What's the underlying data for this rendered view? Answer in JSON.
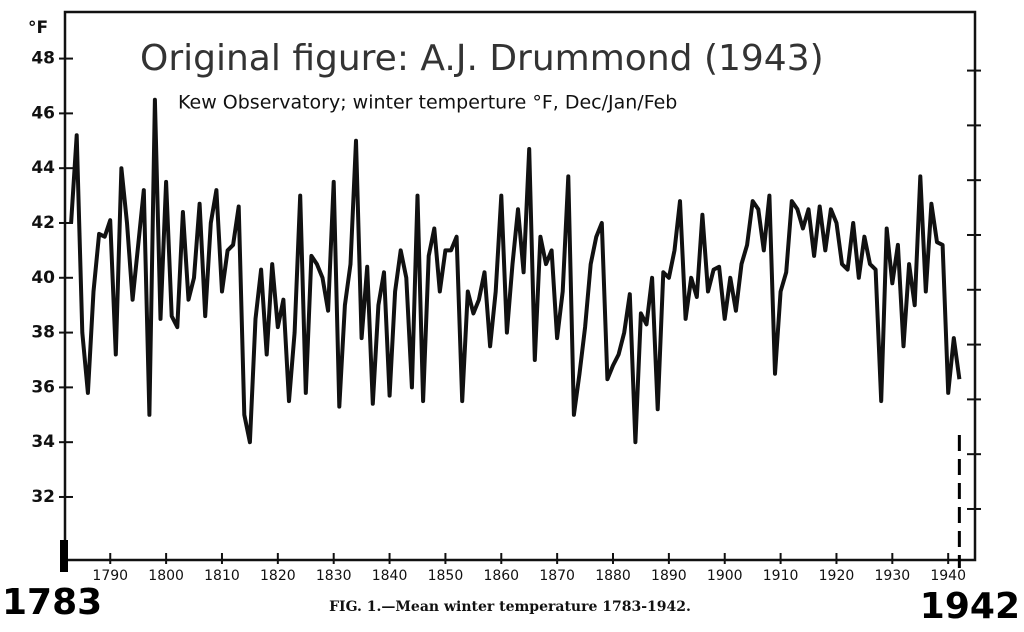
{
  "chart_data": {
    "type": "line",
    "title": "Original figure: A.J. Drummond (1943)",
    "subtitle": "Kew Observatory; winter temperture °F, Dec/Jan/Feb",
    "y_label": "°F",
    "caption": "FIG. 1.—Mean winter temperature 1783-1942.",
    "start_label": "1783",
    "end_label": "1942",
    "x": [
      1783,
      1784,
      1785,
      1786,
      1787,
      1788,
      1789,
      1790,
      1791,
      1792,
      1793,
      1794,
      1795,
      1796,
      1797,
      1798,
      1799,
      1800,
      1801,
      1802,
      1803,
      1804,
      1805,
      1806,
      1807,
      1808,
      1809,
      1810,
      1811,
      1812,
      1813,
      1814,
      1815,
      1816,
      1817,
      1818,
      1819,
      1820,
      1821,
      1822,
      1823,
      1824,
      1825,
      1826,
      1827,
      1828,
      1829,
      1830,
      1831,
      1832,
      1833,
      1834,
      1835,
      1836,
      1837,
      1838,
      1839,
      1840,
      1841,
      1842,
      1843,
      1844,
      1845,
      1846,
      1847,
      1848,
      1849,
      1850,
      1851,
      1852,
      1853,
      1854,
      1855,
      1856,
      1857,
      1858,
      1859,
      1860,
      1861,
      1862,
      1863,
      1864,
      1865,
      1866,
      1867,
      1868,
      1869,
      1870,
      1871,
      1872,
      1873,
      1874,
      1875,
      1876,
      1877,
      1878,
      1879,
      1880,
      1881,
      1882,
      1883,
      1884,
      1885,
      1886,
      1887,
      1888,
      1889,
      1890,
      1891,
      1892,
      1893,
      1894,
      1895,
      1896,
      1897,
      1898,
      1899,
      1900,
      1901,
      1902,
      1903,
      1904,
      1905,
      1906,
      1907,
      1908,
      1909,
      1910,
      1911,
      1912,
      1913,
      1914,
      1915,
      1916,
      1917,
      1918,
      1919,
      1920,
      1921,
      1922,
      1923,
      1924,
      1925,
      1926,
      1927,
      1928,
      1929,
      1930,
      1931,
      1932,
      1933,
      1934,
      1935,
      1936,
      1937,
      1938,
      1939,
      1940,
      1941,
      1942
    ],
    "series": [
      {
        "name": "Mean winter temperature",
        "color": "#111111",
        "values": [
          42.0,
          45.2,
          38.0,
          35.8,
          39.5,
          41.6,
          41.5,
          42.1,
          37.2,
          44.0,
          42.0,
          39.2,
          41.2,
          43.2,
          35.0,
          46.5,
          38.5,
          43.5,
          38.6,
          38.2,
          42.4,
          39.2,
          40.0,
          42.7,
          38.6,
          42.0,
          43.2,
          39.5,
          41.0,
          41.2,
          42.6,
          35.0,
          34.0,
          38.5,
          40.3,
          37.2,
          40.5,
          38.2,
          39.2,
          35.5,
          38.0,
          43.0,
          35.8,
          40.8,
          40.5,
          40.0,
          38.8,
          43.5,
          35.3,
          39.0,
          40.5,
          45.0,
          37.8,
          40.4,
          35.4,
          39.0,
          40.2,
          35.7,
          39.5,
          41.0,
          40.0,
          36.0,
          43.0,
          35.5,
          40.8,
          41.8,
          39.5,
          41.0,
          41.0,
          41.5,
          35.5,
          39.5,
          38.7,
          39.2,
          40.2,
          37.5,
          39.5,
          43.0,
          38.0,
          40.5,
          42.5,
          40.2,
          44.7,
          37.0,
          41.5,
          40.5,
          41.0,
          37.8,
          39.5,
          43.7,
          35.0,
          36.5,
          38.2,
          40.5,
          41.5,
          42.0,
          36.3,
          36.8,
          37.2,
          38.0,
          39.4,
          34.0,
          38.7,
          38.3,
          40.0,
          35.2,
          40.2,
          40.0,
          41.0,
          42.8,
          38.5,
          40.0,
          39.3,
          42.3,
          39.5,
          40.3,
          40.4,
          38.5,
          40.0,
          38.8,
          40.5,
          41.2,
          42.8,
          42.5,
          41.0,
          43.0,
          36.5,
          39.5,
          40.2,
          42.8,
          42.5,
          41.8,
          42.5,
          40.8,
          42.6,
          41.0,
          42.5,
          42.0,
          40.5,
          40.3,
          42.0,
          40.0,
          41.5,
          40.5,
          40.3,
          35.5,
          41.8,
          39.8,
          41.2,
          37.5,
          40.5,
          39.0,
          43.7,
          39.5,
          42.7,
          41.3,
          41.2,
          35.8,
          37.8,
          36.3
        ]
      }
    ],
    "xlim": [
      1781.9,
      1944.8
    ],
    "ylim": [
      29.7,
      49.7
    ],
    "xticks": [
      1790,
      1800,
      1810,
      1820,
      1830,
      1840,
      1850,
      1860,
      1870,
      1880,
      1890,
      1900,
      1910,
      1920,
      1930,
      1940
    ],
    "yticks": [
      32,
      34,
      36,
      38,
      40,
      42,
      44,
      46,
      48
    ],
    "grid": false
  }
}
